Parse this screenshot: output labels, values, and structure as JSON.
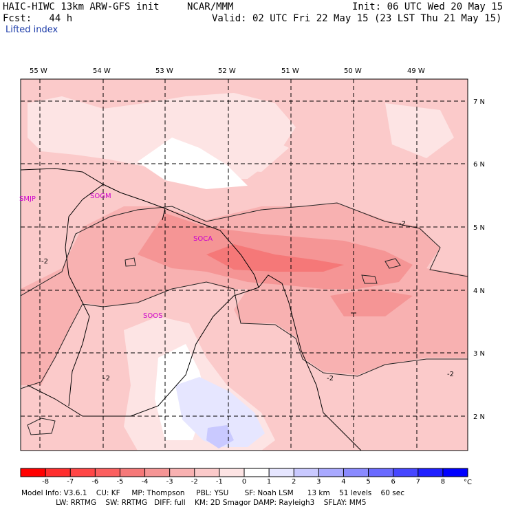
{
  "header": {
    "model": "HAIC-HIWC 13km ARW-GFS init",
    "org": "NCAR/MMM",
    "init": "Init: 06 UTC Wed 20 May 15",
    "fcst": "Fcst:   44 h",
    "valid": "Valid: 02 UTC Fri 22 May 15 (23 LST Thu 21 May 15)",
    "field": "Lifted index"
  },
  "map": {
    "lon_labels": [
      "55 W",
      "54 W",
      "53 W",
      "52 W",
      "51 W",
      "50 W",
      "49 W"
    ],
    "lat_labels": [
      "7 N",
      "6 N",
      "5 N",
      "4 N",
      "3 N",
      "2 N"
    ],
    "stations": [
      "SMJP",
      "SOGM",
      "SOCA",
      "SOOS"
    ],
    "contour_labels": [
      "-2",
      "-2",
      "-2",
      "-2",
      "-2"
    ]
  },
  "colorbar": {
    "tick_labels": [
      "-8",
      "-7",
      "-6",
      "-5",
      "-4",
      "-3",
      "-2",
      "-1",
      "0",
      "1",
      "2",
      "3",
      "4",
      "5",
      "6",
      "7",
      "8"
    ],
    "unit": "°C",
    "colors": [
      "#ff0000",
      "#ff2e2e",
      "#ff4646",
      "#fb5f5f",
      "#f57878",
      "#f59595",
      "#f8b1b1",
      "#fbcaca",
      "#fde4e4",
      "#ffffff",
      "#e6e6ff",
      "#c9c9ff",
      "#a9a9ff",
      "#8a8aff",
      "#6a6aff",
      "#4646ff",
      "#1f1fff",
      "#0000ff"
    ]
  },
  "footer": {
    "line1": "Model Info: V3.6.1    CU: KF     MP: Thompson     PBL: YSU       SF: Noah LSM      13 km    51 levels    60 sec",
    "line2": "               LW: RRTMG    SW: RRTMG   DIFF: full    KM: 2D Smagor DAMP: Rayleigh3    SFLAY: MM5"
  }
}
